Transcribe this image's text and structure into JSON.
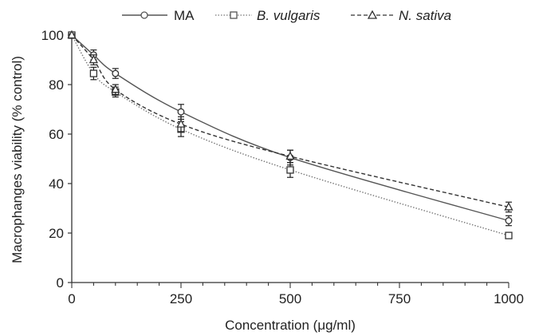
{
  "chart_data": {
    "type": "line",
    "title": "",
    "xlabel": "Concentration (μg/ml)",
    "ylabel": "Macrophanges viability (% control)",
    "xlim": [
      0,
      1000
    ],
    "ylim": [
      0,
      100
    ],
    "xticks": [
      0,
      250,
      500,
      750,
      1000
    ],
    "yticks": [
      0,
      20,
      40,
      60,
      80,
      100
    ],
    "grid": false,
    "legend_position": "top",
    "series": [
      {
        "name": "MA",
        "italic": false,
        "marker": "circle",
        "line_style": "solid",
        "color": "#555555",
        "x": [
          0,
          50,
          100,
          250,
          500,
          1000
        ],
        "y": [
          100,
          92,
          84.5,
          69,
          50.5,
          25
        ],
        "error": [
          0.5,
          2,
          2,
          3,
          3,
          2
        ]
      },
      {
        "name": "B. vulgaris",
        "italic": true,
        "marker": "square",
        "line_style": "dotted",
        "color": "#777777",
        "x": [
          0,
          50,
          100,
          250,
          500,
          1000
        ],
        "y": [
          100,
          84.5,
          77,
          62,
          45.5,
          19
        ],
        "error": [
          0.5,
          2.5,
          2,
          3,
          3,
          1
        ]
      },
      {
        "name": "N. sativa",
        "italic": true,
        "marker": "triangle",
        "line_style": "dashed",
        "color": "#333333",
        "x": [
          0,
          50,
          100,
          250,
          500,
          1000
        ],
        "y": [
          100,
          90,
          78,
          64,
          51,
          30.5
        ],
        "error": [
          0.5,
          2,
          2,
          3,
          2.5,
          2
        ]
      }
    ]
  }
}
